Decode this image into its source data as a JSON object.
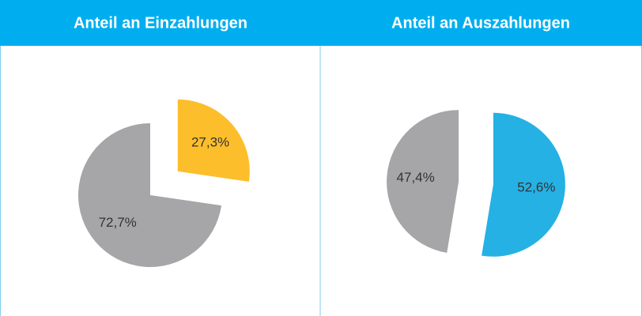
{
  "chart_data": [
    {
      "type": "pie",
      "title": "Anteil an Einzahlungen",
      "values": [
        27.3,
        72.7
      ],
      "value_labels": [
        "27,3%",
        "72,7%"
      ],
      "colors": [
        "#FDBE2B",
        "#A6A6A8"
      ]
    },
    {
      "type": "pie",
      "title": "Anteil an Auszahlungen",
      "values": [
        52.6,
        47.4
      ],
      "value_labels": [
        "52,6%",
        "47,4%"
      ],
      "colors": [
        "#25B1E4",
        "#A6A6A8"
      ]
    }
  ]
}
